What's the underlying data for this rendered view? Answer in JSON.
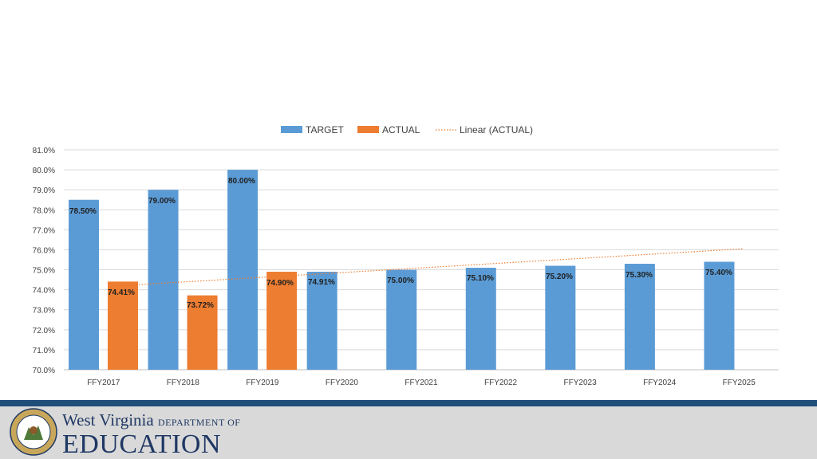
{
  "chart_data": {
    "type": "bar",
    "categories": [
      "FFY2017",
      "FFY2018",
      "FFY2019",
      "FFY2020",
      "FFY2021",
      "FFY2022",
      "FFY2023",
      "FFY2024",
      "FFY2025"
    ],
    "series": [
      {
        "name": "TARGET",
        "color": "#5b9bd5",
        "values": [
          78.5,
          79.0,
          80.0,
          74.9,
          75.0,
          75.1,
          75.2,
          75.3,
          75.4
        ],
        "labels": [
          "78.50%",
          "79.00%",
          "80.00%",
          "74.91%",
          "75.00%",
          "75.10%",
          "75.20%",
          "75.30%",
          "75.40%"
        ]
      },
      {
        "name": "ACTUAL",
        "color": "#ed7d31",
        "values": [
          74.41,
          73.72,
          74.9,
          null,
          null,
          null,
          null,
          null,
          null
        ],
        "labels": [
          "74.41%",
          "73.72%",
          "74.90%",
          null,
          null,
          null,
          null,
          null,
          null
        ]
      }
    ],
    "trendline": {
      "name": "Linear (ACTUAL)",
      "color": "#ed7d31",
      "y_start": 74.2,
      "y_end": 76.05
    },
    "y_ticks": [
      "70.0%",
      "71.0%",
      "72.0%",
      "73.0%",
      "74.0%",
      "75.0%",
      "76.0%",
      "77.0%",
      "78.0%",
      "79.0%",
      "80.0%",
      "81.0%"
    ],
    "ylim": [
      70,
      81
    ],
    "grid": true,
    "legend_position": "top"
  },
  "footer": {
    "org_line1": "West Virginia",
    "org_dept": "DEPARTMENT OF",
    "org_line2": "EDUCATION",
    "seal_icon": "wv-state-seal-icon"
  }
}
